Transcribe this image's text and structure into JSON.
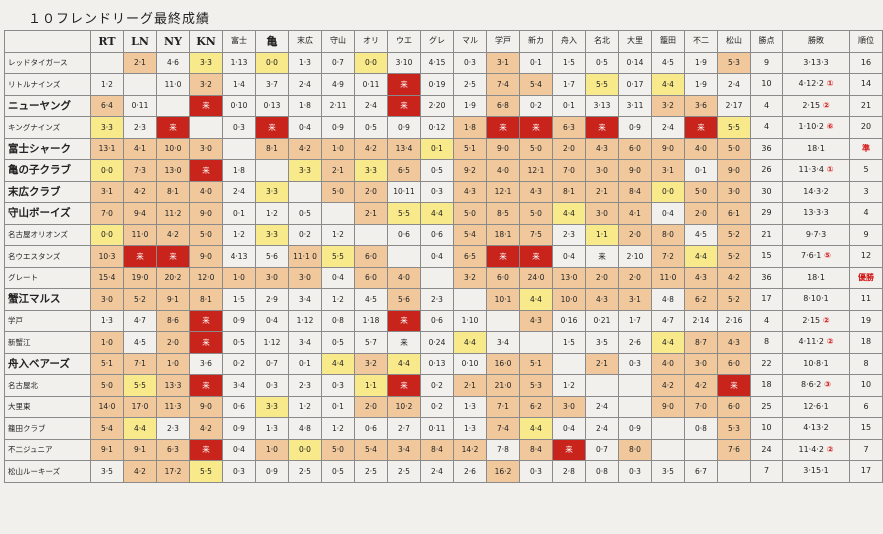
{
  "title": "１０フレンドリーグ最終成績",
  "columns": {
    "name": "",
    "teams": [
      "RT",
      "LN",
      "NY",
      "KN",
      "富士",
      "亀",
      "末広",
      "守山",
      "オリ",
      "ウエ",
      "グレ",
      "マル",
      "学戸",
      "新カ",
      "舟入",
      "名北",
      "大里",
      "籠田",
      "不二",
      "松山"
    ],
    "points": "勝点",
    "record": "勝敗",
    "rank": "順位"
  },
  "legend": {
    "w": "light cream / no fill",
    "y": "yellow (#f8e98a)",
    "o": "light orange (#f0c89c)",
    "d": "orange (#e8945c)",
    "r": "red (#c8241c)",
    "diag": "blank self cell"
  },
  "rows": [
    {
      "name": "レッドタイガース",
      "size": "small",
      "cells": [
        "",
        "2·1",
        "4·6",
        "3·3",
        "1·13",
        "0·0",
        "1·3",
        "0·7",
        "0·0",
        "3·10",
        "4·15",
        "0·3",
        "3·1",
        "0·1",
        "1·5",
        "0·5",
        "0·14",
        "4·5",
        "1·9",
        "5·3"
      ],
      "colors": [
        "diag",
        "o",
        "w",
        "y",
        "w",
        "y",
        "w",
        "w",
        "y",
        "w",
        "w",
        "w",
        "o",
        "w",
        "w",
        "w",
        "w",
        "w",
        "w",
        "o"
      ],
      "points": "9",
      "record": "3·13·3",
      "rank": "16",
      "rank_red": false
    },
    {
      "name": "リトルナインズ",
      "size": "small",
      "cells": [
        "1·2",
        "",
        "11·0",
        "3·2",
        "1·4",
        "3·7",
        "2·4",
        "4·9",
        "0·11",
        "来",
        "0·19",
        "2·5",
        "7·4",
        "5·4",
        "1·7",
        "5·5",
        "0·17",
        "4·4",
        "1·9",
        "2·4"
      ],
      "colors": [
        "w",
        "diag",
        "w",
        "o",
        "w",
        "w",
        "w",
        "w",
        "w",
        "r",
        "w",
        "w",
        "o",
        "o",
        "w",
        "y",
        "w",
        "y",
        "w",
        "w"
      ],
      "points": "10",
      "record": "4·12·2 ①",
      "rank": "14",
      "rank_red": false
    },
    {
      "name": "ニューヤング",
      "size": "big",
      "cells": [
        "6·4",
        "0·11",
        "",
        "来",
        "0·10",
        "0·13",
        "1·8",
        "2·11",
        "2·4",
        "来",
        "2·20",
        "1·9",
        "6·8",
        "0·2",
        "0·1",
        "3·13",
        "3·11",
        "3·2",
        "3·6",
        "2·17"
      ],
      "colors": [
        "o",
        "w",
        "diag",
        "r",
        "w",
        "w",
        "w",
        "w",
        "w",
        "r",
        "w",
        "w",
        "o",
        "w",
        "w",
        "w",
        "w",
        "o",
        "o",
        "w"
      ],
      "points": "4",
      "record": "2·15 ②",
      "rank": "21",
      "rank_red": false
    },
    {
      "name": "キングナインズ",
      "size": "small",
      "cells": [
        "3·3",
        "2·3",
        "来",
        "",
        "0·3",
        "来",
        "0·4",
        "0·9",
        "0·5",
        "0·9",
        "0·12",
        "1·8",
        "来",
        "来",
        "6·3",
        "来",
        "0·9",
        "2·4",
        "来",
        "5·5"
      ],
      "colors": [
        "y",
        "w",
        "r",
        "diag",
        "w",
        "r",
        "w",
        "w",
        "w",
        "w",
        "w",
        "o",
        "r",
        "r",
        "o",
        "r",
        "w",
        "w",
        "r",
        "y"
      ],
      "points": "4",
      "record": "1·10·2 ⑥",
      "rank": "20",
      "rank_red": false
    },
    {
      "name": "富士シャーク",
      "size": "big",
      "cells": [
        "13·1",
        "4·1",
        "10·0",
        "3·0",
        "",
        "8·1",
        "4·2",
        "1·0",
        "4·2",
        "13·4",
        "0·1",
        "5·1",
        "9·0",
        "5·0",
        "2·0",
        "4·3",
        "6·0",
        "9·0",
        "4·0",
        "5·0"
      ],
      "colors": [
        "o",
        "o",
        "o",
        "o",
        "diag",
        "o",
        "o",
        "o",
        "o",
        "o",
        "y",
        "o",
        "o",
        "o",
        "o",
        "o",
        "o",
        "o",
        "o",
        "o"
      ],
      "points": "36",
      "record": "18·1",
      "rank": "準",
      "rank_red": true
    },
    {
      "name": "亀の子クラブ",
      "size": "big",
      "cells": [
        "0·0",
        "7·3",
        "13·0",
        "来",
        "1·8",
        "",
        "3·3",
        "2·1",
        "3·3",
        "6·5",
        "0·5",
        "9·2",
        "4·0",
        "12·1",
        "7·0",
        "3·0",
        "9·0",
        "3·1",
        "0·1",
        "9·0"
      ],
      "colors": [
        "y",
        "o",
        "o",
        "r",
        "w",
        "diag",
        "y",
        "o",
        "y",
        "o",
        "w",
        "o",
        "o",
        "o",
        "o",
        "o",
        "o",
        "o",
        "w",
        "o"
      ],
      "points": "26",
      "record": "11·3·4 ①",
      "rank": "5",
      "rank_red": false
    },
    {
      "name": "末広クラブ",
      "size": "big",
      "cells": [
        "3·1",
        "4·2",
        "8·1",
        "4·0",
        "2·4",
        "3·3",
        "",
        "5·0",
        "2·0",
        "10·11",
        "0·3",
        "4·3",
        "12·1",
        "4·3",
        "8·1",
        "2·1",
        "8·4",
        "0·0",
        "5·0",
        "3·0"
      ],
      "colors": [
        "o",
        "o",
        "o",
        "o",
        "w",
        "y",
        "diag",
        "o",
        "o",
        "w",
        "w",
        "o",
        "o",
        "o",
        "o",
        "o",
        "o",
        "y",
        "o",
        "o"
      ],
      "points": "30",
      "record": "14·3·2",
      "rank": "3",
      "rank_red": false
    },
    {
      "name": "守山ボーイズ",
      "size": "big",
      "cells": [
        "7·0",
        "9·4",
        "11·2",
        "9·0",
        "0·1",
        "1·2",
        "0·5",
        "",
        "2·1",
        "5·5",
        "4·4",
        "5·0",
        "8·5",
        "5·0",
        "4·4",
        "3·0",
        "4·1",
        "0·4",
        "2·0",
        "6·1"
      ],
      "colors": [
        "o",
        "o",
        "o",
        "o",
        "w",
        "w",
        "w",
        "diag",
        "o",
        "y",
        "y",
        "o",
        "o",
        "o",
        "y",
        "o",
        "o",
        "w",
        "o",
        "o"
      ],
      "points": "29",
      "record": "13·3·3",
      "rank": "4",
      "rank_red": false
    },
    {
      "name": "名古屋オリオンズ",
      "size": "small",
      "cells": [
        "0·0",
        "11·0",
        "4·2",
        "5·0",
        "1·2",
        "3·3",
        "0·2",
        "1·2",
        "",
        "0·6",
        "0·6",
        "5·4",
        "18·1",
        "7·5",
        "2·3",
        "1·1",
        "2·0",
        "8·0",
        "4·5",
        "5·2"
      ],
      "colors": [
        "y",
        "o",
        "o",
        "o",
        "w",
        "y",
        "w",
        "w",
        "diag",
        "w",
        "w",
        "o",
        "o",
        "o",
        "w",
        "y",
        "o",
        "o",
        "w",
        "o"
      ],
      "points": "21",
      "record": "9·7·3",
      "rank": "9",
      "rank_red": false
    },
    {
      "name": "名ウエスタンズ",
      "size": "small",
      "cells": [
        "10·3",
        "来",
        "来",
        "9·0",
        "4·13",
        "5·6",
        "11·1 0",
        "5·5",
        "6·0",
        "",
        "0·4",
        "6·5",
        "来",
        "来",
        "0·4",
        "来",
        "2·10",
        "7·2",
        "4·4",
        "5·2"
      ],
      "colors": [
        "o",
        "r",
        "r",
        "o",
        "w",
        "w",
        "o",
        "y",
        "o",
        "diag",
        "w",
        "o",
        "r",
        "r",
        "w",
        "w",
        "w",
        "o",
        "y",
        "o"
      ],
      "points": "15",
      "record": "7·6·1 ⑤",
      "rank": "12",
      "rank_red": false
    },
    {
      "name": "グレート",
      "size": "small",
      "cells": [
        "15·4",
        "19·0",
        "20·2",
        "12·0",
        "1·0",
        "3·0",
        "3·0",
        "0·4",
        "6·0",
        "4·0",
        "",
        "3·2",
        "6·0",
        "24·0",
        "13·0",
        "2·0",
        "2·0",
        "11·0",
        "4·3",
        "4·2"
      ],
      "colors": [
        "o",
        "o",
        "o",
        "o",
        "o",
        "o",
        "o",
        "w",
        "o",
        "o",
        "diag",
        "o",
        "o",
        "o",
        "o",
        "o",
        "o",
        "o",
        "o",
        "o"
      ],
      "points": "36",
      "record": "18·1",
      "rank": "優勝",
      "rank_red": true
    },
    {
      "name": "蟹江マルス",
      "size": "big",
      "cells": [
        "3·0",
        "5·2",
        "9·1",
        "8·1",
        "1·5",
        "2·9",
        "3·4",
        "1·2",
        "4·5",
        "5·6",
        "2·3",
        "",
        "10·1",
        "4·4",
        "10·0",
        "4·3",
        "3·1",
        "4·8",
        "6·2",
        "5·2"
      ],
      "colors": [
        "o",
        "o",
        "o",
        "o",
        "w",
        "w",
        "w",
        "w",
        "w",
        "o",
        "w",
        "diag",
        "o",
        "y",
        "o",
        "o",
        "o",
        "w",
        "o",
        "o"
      ],
      "points": "17",
      "record": "8·10·1",
      "rank": "11",
      "rank_red": false
    },
    {
      "name": "学戸",
      "size": "small",
      "cells": [
        "1·3",
        "4·7",
        "8·6",
        "来",
        "0·9",
        "0·4",
        "1·12",
        "0·8",
        "1·18",
        "来",
        "0·6",
        "1·10",
        "",
        "4·3",
        "0·16",
        "0·21",
        "1·7",
        "4·7",
        "2·14",
        "2·16"
      ],
      "colors": [
        "w",
        "w",
        "o",
        "r",
        "w",
        "w",
        "w",
        "w",
        "w",
        "r",
        "w",
        "w",
        "diag",
        "o",
        "w",
        "w",
        "w",
        "w",
        "w",
        "w"
      ],
      "points": "4",
      "record": "2·15 ②",
      "rank": "19",
      "rank_red": false
    },
    {
      "name": "新蟹江",
      "size": "small",
      "cells": [
        "1·0",
        "4·5",
        "2·0",
        "来",
        "0·5",
        "1·12",
        "3·4",
        "0·5",
        "5·7",
        "来",
        "0·24",
        "4·4",
        "3·4",
        "",
        "1·5",
        "3·5",
        "2·6",
        "4·4",
        "8·7",
        "4·3"
      ],
      "colors": [
        "o",
        "w",
        "o",
        "r",
        "w",
        "w",
        "w",
        "w",
        "w",
        "w",
        "w",
        "y",
        "w",
        "diag",
        "w",
        "w",
        "w",
        "y",
        "o",
        "o"
      ],
      "points": "8",
      "record": "4·11·2 ②",
      "rank": "18",
      "rank_red": false
    },
    {
      "name": "舟入ベアーズ",
      "size": "big",
      "cells": [
        "5·1",
        "7·1",
        "1·0",
        "3·6",
        "0·2",
        "0·7",
        "0·1",
        "4·4",
        "3·2",
        "4·4",
        "0·13",
        "0·10",
        "16·0",
        "5·1",
        "",
        "2·1",
        "0·3",
        "4·0",
        "3·0",
        "6·0"
      ],
      "colors": [
        "o",
        "o",
        "o",
        "w",
        "w",
        "w",
        "w",
        "y",
        "o",
        "y",
        "w",
        "w",
        "o",
        "o",
        "diag",
        "o",
        "w",
        "o",
        "o",
        "o"
      ],
      "points": "22",
      "record": "10·8·1",
      "rank": "8",
      "rank_red": false
    },
    {
      "name": "名古屋北",
      "size": "small",
      "cells": [
        "5·0",
        "5·5",
        "13·3",
        "来",
        "3·4",
        "0·3",
        "2·3",
        "0·3",
        "1·1",
        "来",
        "0·2",
        "2·1",
        "21·0",
        "5·3",
        "1·2",
        "",
        "",
        "4·2",
        "4·2",
        "来"
      ],
      "colors": [
        "o",
        "y",
        "o",
        "r",
        "w",
        "w",
        "w",
        "w",
        "y",
        "r",
        "w",
        "o",
        "o",
        "o",
        "w",
        "diag",
        "w",
        "o",
        "o",
        "r"
      ],
      "points": "18",
      "record": "8·6·2 ③",
      "rank": "10",
      "rank_red": false
    },
    {
      "name": "大里東",
      "size": "small",
      "cells": [
        "14·0",
        "17·0",
        "11·3",
        "9·0",
        "0·6",
        "3·3",
        "1·2",
        "0·1",
        "2·0",
        "10·2",
        "0·2",
        "1·3",
        "7·1",
        "6·2",
        "3·0",
        "2·4",
        "",
        "9·0",
        "7·0",
        "6·0"
      ],
      "colors": [
        "o",
        "o",
        "o",
        "o",
        "w",
        "y",
        "w",
        "w",
        "o",
        "o",
        "w",
        "w",
        "o",
        "o",
        "o",
        "w",
        "diag",
        "o",
        "o",
        "o"
      ],
      "points": "25",
      "record": "12·6·1",
      "rank": "6",
      "rank_red": false
    },
    {
      "name": "籠田クラブ",
      "size": "small",
      "cells": [
        "5·4",
        "4·4",
        "2·3",
        "4·2",
        "0·9",
        "1·3",
        "4·8",
        "1·2",
        "0·6",
        "2·7",
        "0·11",
        "1·3",
        "7·4",
        "4·4",
        "0·4",
        "2·4",
        "0·9",
        "",
        "0·8",
        "5·3"
      ],
      "colors": [
        "o",
        "y",
        "w",
        "o",
        "w",
        "w",
        "w",
        "w",
        "w",
        "w",
        "w",
        "w",
        "o",
        "y",
        "w",
        "w",
        "w",
        "diag",
        "w",
        "o"
      ],
      "points": "10",
      "record": "4·13·2",
      "rank": "15",
      "rank_red": false
    },
    {
      "name": "不二ジュニア",
      "size": "small",
      "cells": [
        "9·1",
        "9·1",
        "6·3",
        "来",
        "0·4",
        "1·0",
        "0·0",
        "5·0",
        "5·4",
        "3·4",
        "8·4",
        "14·2",
        "7·8",
        "8·4",
        "来",
        "0·7",
        "8·0",
        "",
        "",
        "7·6"
      ],
      "colors": [
        "o",
        "o",
        "o",
        "r",
        "w",
        "o",
        "y",
        "o",
        "o",
        "o",
        "o",
        "o",
        "w",
        "o",
        "r",
        "w",
        "o",
        "w",
        "diag",
        "o"
      ],
      "points": "24",
      "record": "11·4·2 ②",
      "rank": "7",
      "rank_red": false
    },
    {
      "name": "松山ルーキーズ",
      "size": "small",
      "cells": [
        "3·5",
        "4·2",
        "17·2",
        "5·5",
        "0·3",
        "0·9",
        "2·5",
        "0·5",
        "2·5",
        "2·5",
        "2·4",
        "2·6",
        "16·2",
        "0·3",
        "2·8",
        "0·8",
        "0·3",
        "3·5",
        "6·7",
        ""
      ],
      "colors": [
        "w",
        "o",
        "o",
        "y",
        "w",
        "w",
        "w",
        "w",
        "w",
        "w",
        "w",
        "w",
        "o",
        "w",
        "w",
        "w",
        "w",
        "w",
        "w",
        "diag"
      ],
      "points": "7",
      "record": "3·15·1",
      "rank": "17",
      "rank_red": false
    }
  ]
}
